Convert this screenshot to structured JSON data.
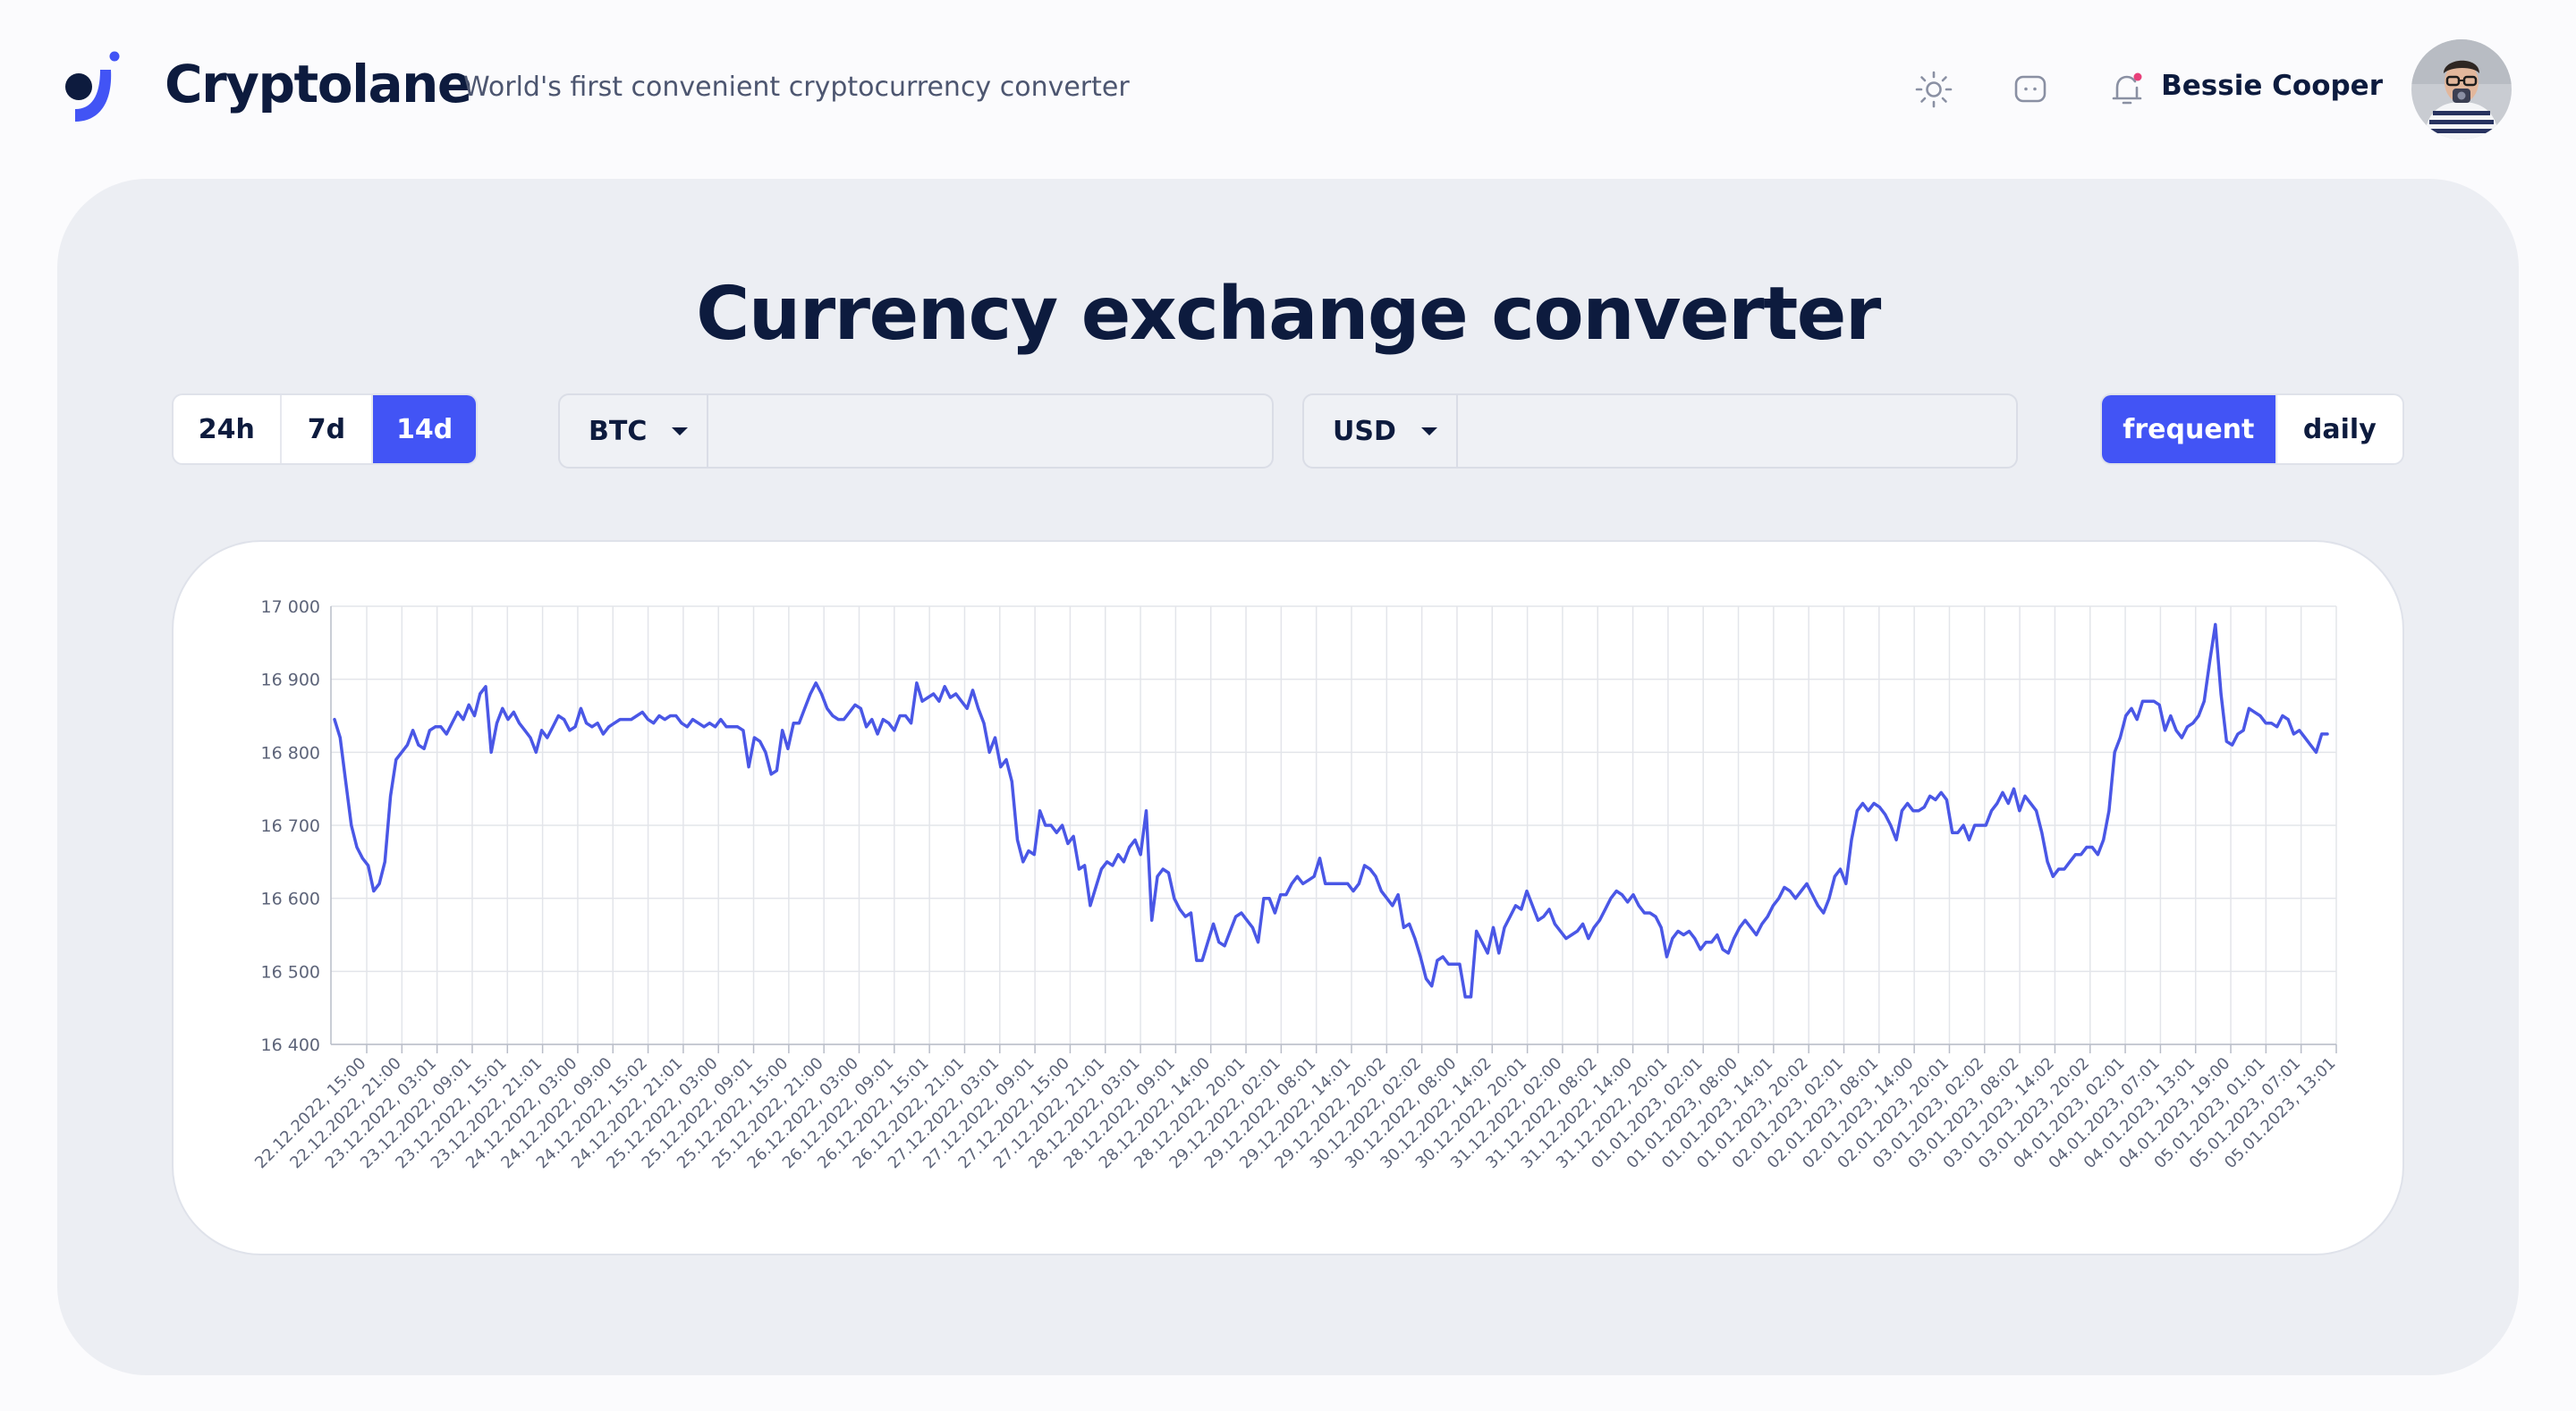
{
  "header": {
    "brand": "Cryptolane",
    "tagline": "World's first convenient cryptocurrency converter",
    "icons": [
      "sun-icon",
      "chat-icon",
      "bell-icon"
    ],
    "notification_dot_color": "#e8407a",
    "user_name": "Bessie Cooper"
  },
  "main": {
    "title": "Currency exchange converter",
    "periods": [
      "24h",
      "7d",
      "14d"
    ],
    "active_period": "14d",
    "from_currency": {
      "code": "BTC",
      "value": ""
    },
    "to_currency": {
      "code": "USD",
      "value": ""
    },
    "modes": [
      "frequent",
      "daily"
    ],
    "active_mode": "frequent"
  },
  "colors": {
    "accent": "#4254f5",
    "line": "#4a57e6",
    "text": "#0d1b3e"
  },
  "chart_data": {
    "type": "line",
    "grid": true,
    "ylim": [
      16400,
      17000
    ],
    "y_ticks": [
      "17 000",
      "16 900",
      "16 800",
      "16 700",
      "16 600",
      "16 500",
      "16 400"
    ],
    "y_tick_values": [
      17000,
      16900,
      16800,
      16700,
      16600,
      16500,
      16400
    ],
    "x_labels": [
      "22.12.2022, 15:00",
      "22.12.2022, 21:00",
      "23.12.2022, 03:01",
      "23.12.2022, 09:01",
      "23.12.2022, 15:01",
      "23.12.2022, 21:01",
      "24.12.2022, 03:00",
      "24.12.2022, 09:00",
      "24.12.2022, 15:02",
      "24.12.2022, 21:01",
      "25.12.2022, 03:00",
      "25.12.2022, 09:01",
      "25.12.2022, 15:00",
      "25.12.2022, 21:00",
      "26.12.2022, 03:00",
      "26.12.2022, 09:01",
      "26.12.2022, 15:01",
      "26.12.2022, 21:01",
      "27.12.2022, 03:01",
      "27.12.2022, 09:01",
      "27.12.2022, 15:00",
      "27.12.2022, 21:01",
      "28.12.2022, 03:01",
      "28.12.2022, 09:01",
      "28.12.2022, 14:00",
      "28.12.2022, 20:01",
      "29.12.2022, 02:01",
      "29.12.2022, 08:01",
      "29.12.2022, 14:01",
      "29.12.2022, 20:02",
      "30.12.2022, 02:02",
      "30.12.2022, 08:00",
      "30.12.2022, 14:02",
      "30.12.2022, 20:01",
      "31.12.2022, 02:00",
      "31.12.2022, 08:02",
      "31.12.2022, 14:00",
      "31.12.2022, 20:01",
      "01.01.2023, 02:01",
      "01.01.2023, 08:00",
      "01.01.2023, 14:01",
      "01.01.2023, 20:02",
      "02.01.2023, 02:01",
      "02.01.2023, 08:01",
      "02.01.2023, 14:00",
      "02.01.2023, 20:01",
      "03.01.2023, 02:02",
      "03.01.2023, 08:02",
      "03.01.2023, 14:02",
      "03.01.2023, 20:02",
      "04.01.2023, 02:01",
      "04.01.2023, 07:01",
      "04.01.2023, 13:01",
      "04.01.2023, 19:00",
      "05.01.2023, 01:01",
      "05.01.2023, 07:01",
      "05.01.2023, 13:01"
    ],
    "series": [
      {
        "values": [
          16845,
          16820,
          16760,
          16700,
          16670,
          16655,
          16645,
          16610,
          16620,
          16650,
          16740,
          16790,
          16800,
          16810,
          16830,
          16810,
          16805,
          16830,
          16835,
          16835,
          16825,
          16840,
          16855,
          16845,
          16865,
          16850,
          16880,
          16890,
          16800,
          16840,
          16860,
          16845,
          16855,
          16840,
          16830,
          16820,
          16800,
          16830,
          16820,
          16835,
          16850,
          16845,
          16830,
          16835,
          16860,
          16840,
          16835,
          16840,
          16825,
          16835,
          16840,
          16845,
          16845,
          16845,
          16850,
          16855,
          16845,
          16840,
          16850,
          16845,
          16850,
          16850,
          16840,
          16835,
          16845,
          16840,
          16835,
          16840,
          16835,
          16845,
          16835,
          16835,
          16835,
          16830,
          16780,
          16820,
          16815,
          16800,
          16770,
          16775,
          16830,
          16805,
          16840,
          16840,
          16860,
          16880,
          16895,
          16880,
          16860,
          16850,
          16845,
          16845,
          16855,
          16865,
          16860,
          16835,
          16845,
          16825,
          16845,
          16840,
          16830,
          16850,
          16850,
          16840,
          16895,
          16870,
          16875,
          16880,
          16870,
          16890,
          16875,
          16880,
          16870,
          16860,
          16885,
          16860,
          16840,
          16800,
          16820,
          16780,
          16790,
          16760,
          16680,
          16650,
          16665,
          16660,
          16720,
          16700,
          16700,
          16690,
          16700,
          16675,
          16685,
          16640,
          16645,
          16590,
          16615,
          16640,
          16650,
          16645,
          16660,
          16650,
          16670,
          16680,
          16660,
          16720,
          16570,
          16630,
          16640,
          16635,
          16600,
          16585,
          16575,
          16580,
          16515,
          16515,
          16540,
          16565,
          16540,
          16535,
          16555,
          16575,
          16580,
          16570,
          16560,
          16540,
          16600,
          16600,
          16580,
          16605,
          16605,
          16620,
          16630,
          16620,
          16625,
          16630,
          16655,
          16620,
          16620,
          16620,
          16620,
          16620,
          16610,
          16620,
          16645,
          16640,
          16630,
          16610,
          16600,
          16590,
          16605,
          16560,
          16565,
          16545,
          16520,
          16490,
          16480,
          16515,
          16520,
          16510,
          16510,
          16510,
          16465,
          16465,
          16555,
          16540,
          16525,
          16560,
          16525,
          16560,
          16575,
          16590,
          16585,
          16610,
          16590,
          16570,
          16575,
          16585,
          16565,
          16555,
          16545,
          16550,
          16555,
          16565,
          16545,
          16560,
          16570,
          16585,
          16600,
          16610,
          16605,
          16595,
          16605,
          16590,
          16580,
          16580,
          16575,
          16560,
          16520,
          16545,
          16555,
          16550,
          16555,
          16545,
          16530,
          16540,
          16540,
          16550,
          16530,
          16525,
          16545,
          16560,
          16570,
          16560,
          16550,
          16565,
          16575,
          16590,
          16600,
          16615,
          16610,
          16600,
          16610,
          16620,
          16605,
          16590,
          16580,
          16600,
          16630,
          16640,
          16620,
          16680,
          16720,
          16730,
          16720,
          16730,
          16725,
          16715,
          16700,
          16680,
          16720,
          16730,
          16720,
          16720,
          16725,
          16740,
          16735,
          16745,
          16735,
          16690,
          16690,
          16700,
          16680,
          16700,
          16700,
          16700,
          16720,
          16730,
          16745,
          16730,
          16750,
          16720,
          16740,
          16730,
          16720,
          16690,
          16650,
          16630,
          16640,
          16640,
          16650,
          16660,
          16660,
          16670,
          16670,
          16660,
          16680,
          16720,
          16800,
          16820,
          16850,
          16860,
          16845,
          16870,
          16870,
          16870,
          16865,
          16830,
          16850,
          16830,
          16820,
          16835,
          16840,
          16850,
          16870,
          16925,
          16975,
          16880,
          16815,
          16810,
          16825,
          16830,
          16860,
          16855,
          16850,
          16840,
          16840,
          16835,
          16850,
          16845,
          16825,
          16830,
          16820,
          16810,
          16800,
          16825,
          16825
        ]
      }
    ]
  }
}
